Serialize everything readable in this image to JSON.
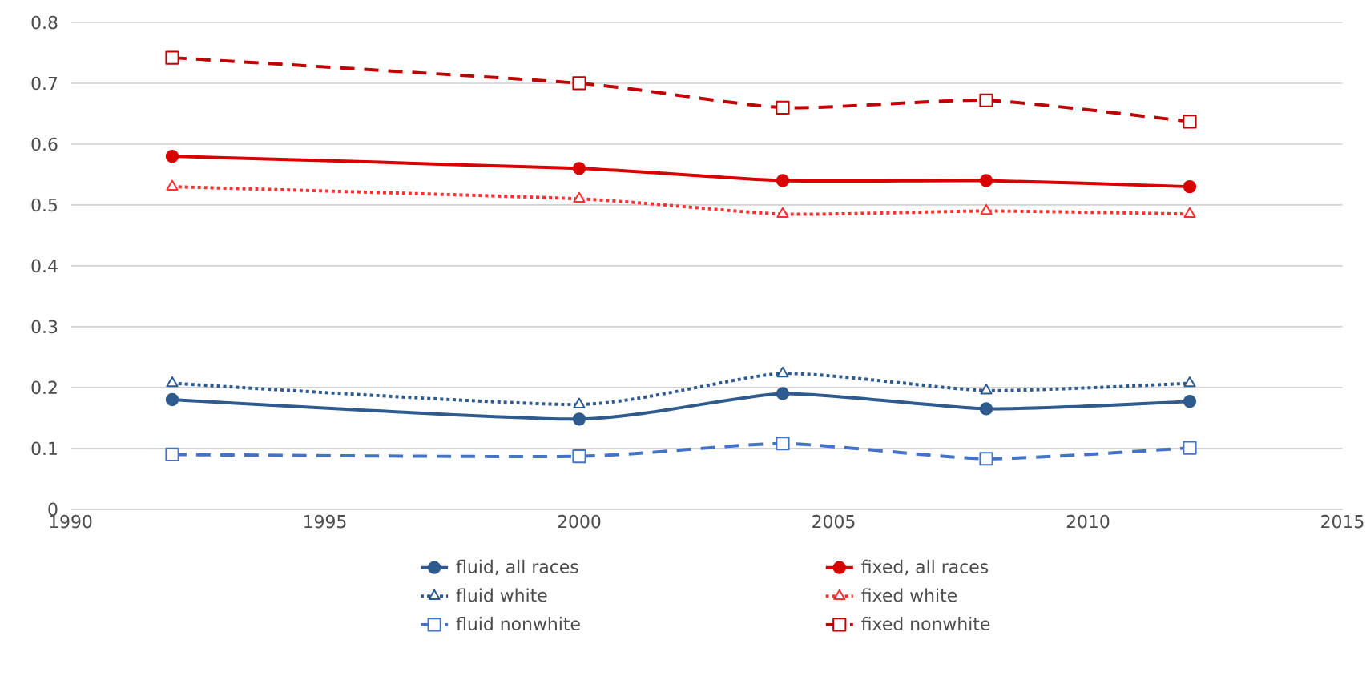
{
  "chart_data": {
    "type": "line",
    "x": [
      1992,
      2000,
      2004,
      2008,
      2012
    ],
    "series": [
      {
        "name": "fluid, all races",
        "color": "#2e5a8e",
        "marker": "circle",
        "line_style": "solid",
        "values": [
          0.18,
          0.148,
          0.19,
          0.165,
          0.177
        ]
      },
      {
        "name": "fixed, all races",
        "color": "#d90000",
        "marker": "circle",
        "line_style": "solid",
        "values": [
          0.58,
          0.56,
          0.54,
          0.54,
          0.53
        ]
      },
      {
        "name": "fluid white",
        "color": "#2e5a8e",
        "marker": "triangle",
        "line_style": "dotted",
        "values": [
          0.207,
          0.172,
          0.223,
          0.195,
          0.207
        ]
      },
      {
        "name": "fixed white",
        "color": "#ff3030",
        "marker": "triangle",
        "line_style": "dotted",
        "values": [
          0.53,
          0.51,
          0.485,
          0.49,
          0.485
        ]
      },
      {
        "name": "fluid nonwhite",
        "color": "#4472c4",
        "marker": "square",
        "line_style": "dashed",
        "values": [
          0.09,
          0.087,
          0.108,
          0.083,
          0.101
        ]
      },
      {
        "name": "fixed nonwhite",
        "color": "#c00000",
        "marker": "square",
        "line_style": "dashed",
        "values": [
          0.742,
          0.7,
          0.66,
          0.672,
          0.637
        ]
      }
    ],
    "xlim": [
      1990,
      2015
    ],
    "xticks": [
      1990,
      1995,
      2000,
      2005,
      2010,
      2015
    ],
    "ylim": [
      0,
      0.8
    ],
    "yticks": [
      0,
      0.1,
      0.2,
      0.3,
      0.4,
      0.5,
      0.6,
      0.7,
      0.8
    ],
    "grid": "y",
    "legend": "bottom"
  }
}
